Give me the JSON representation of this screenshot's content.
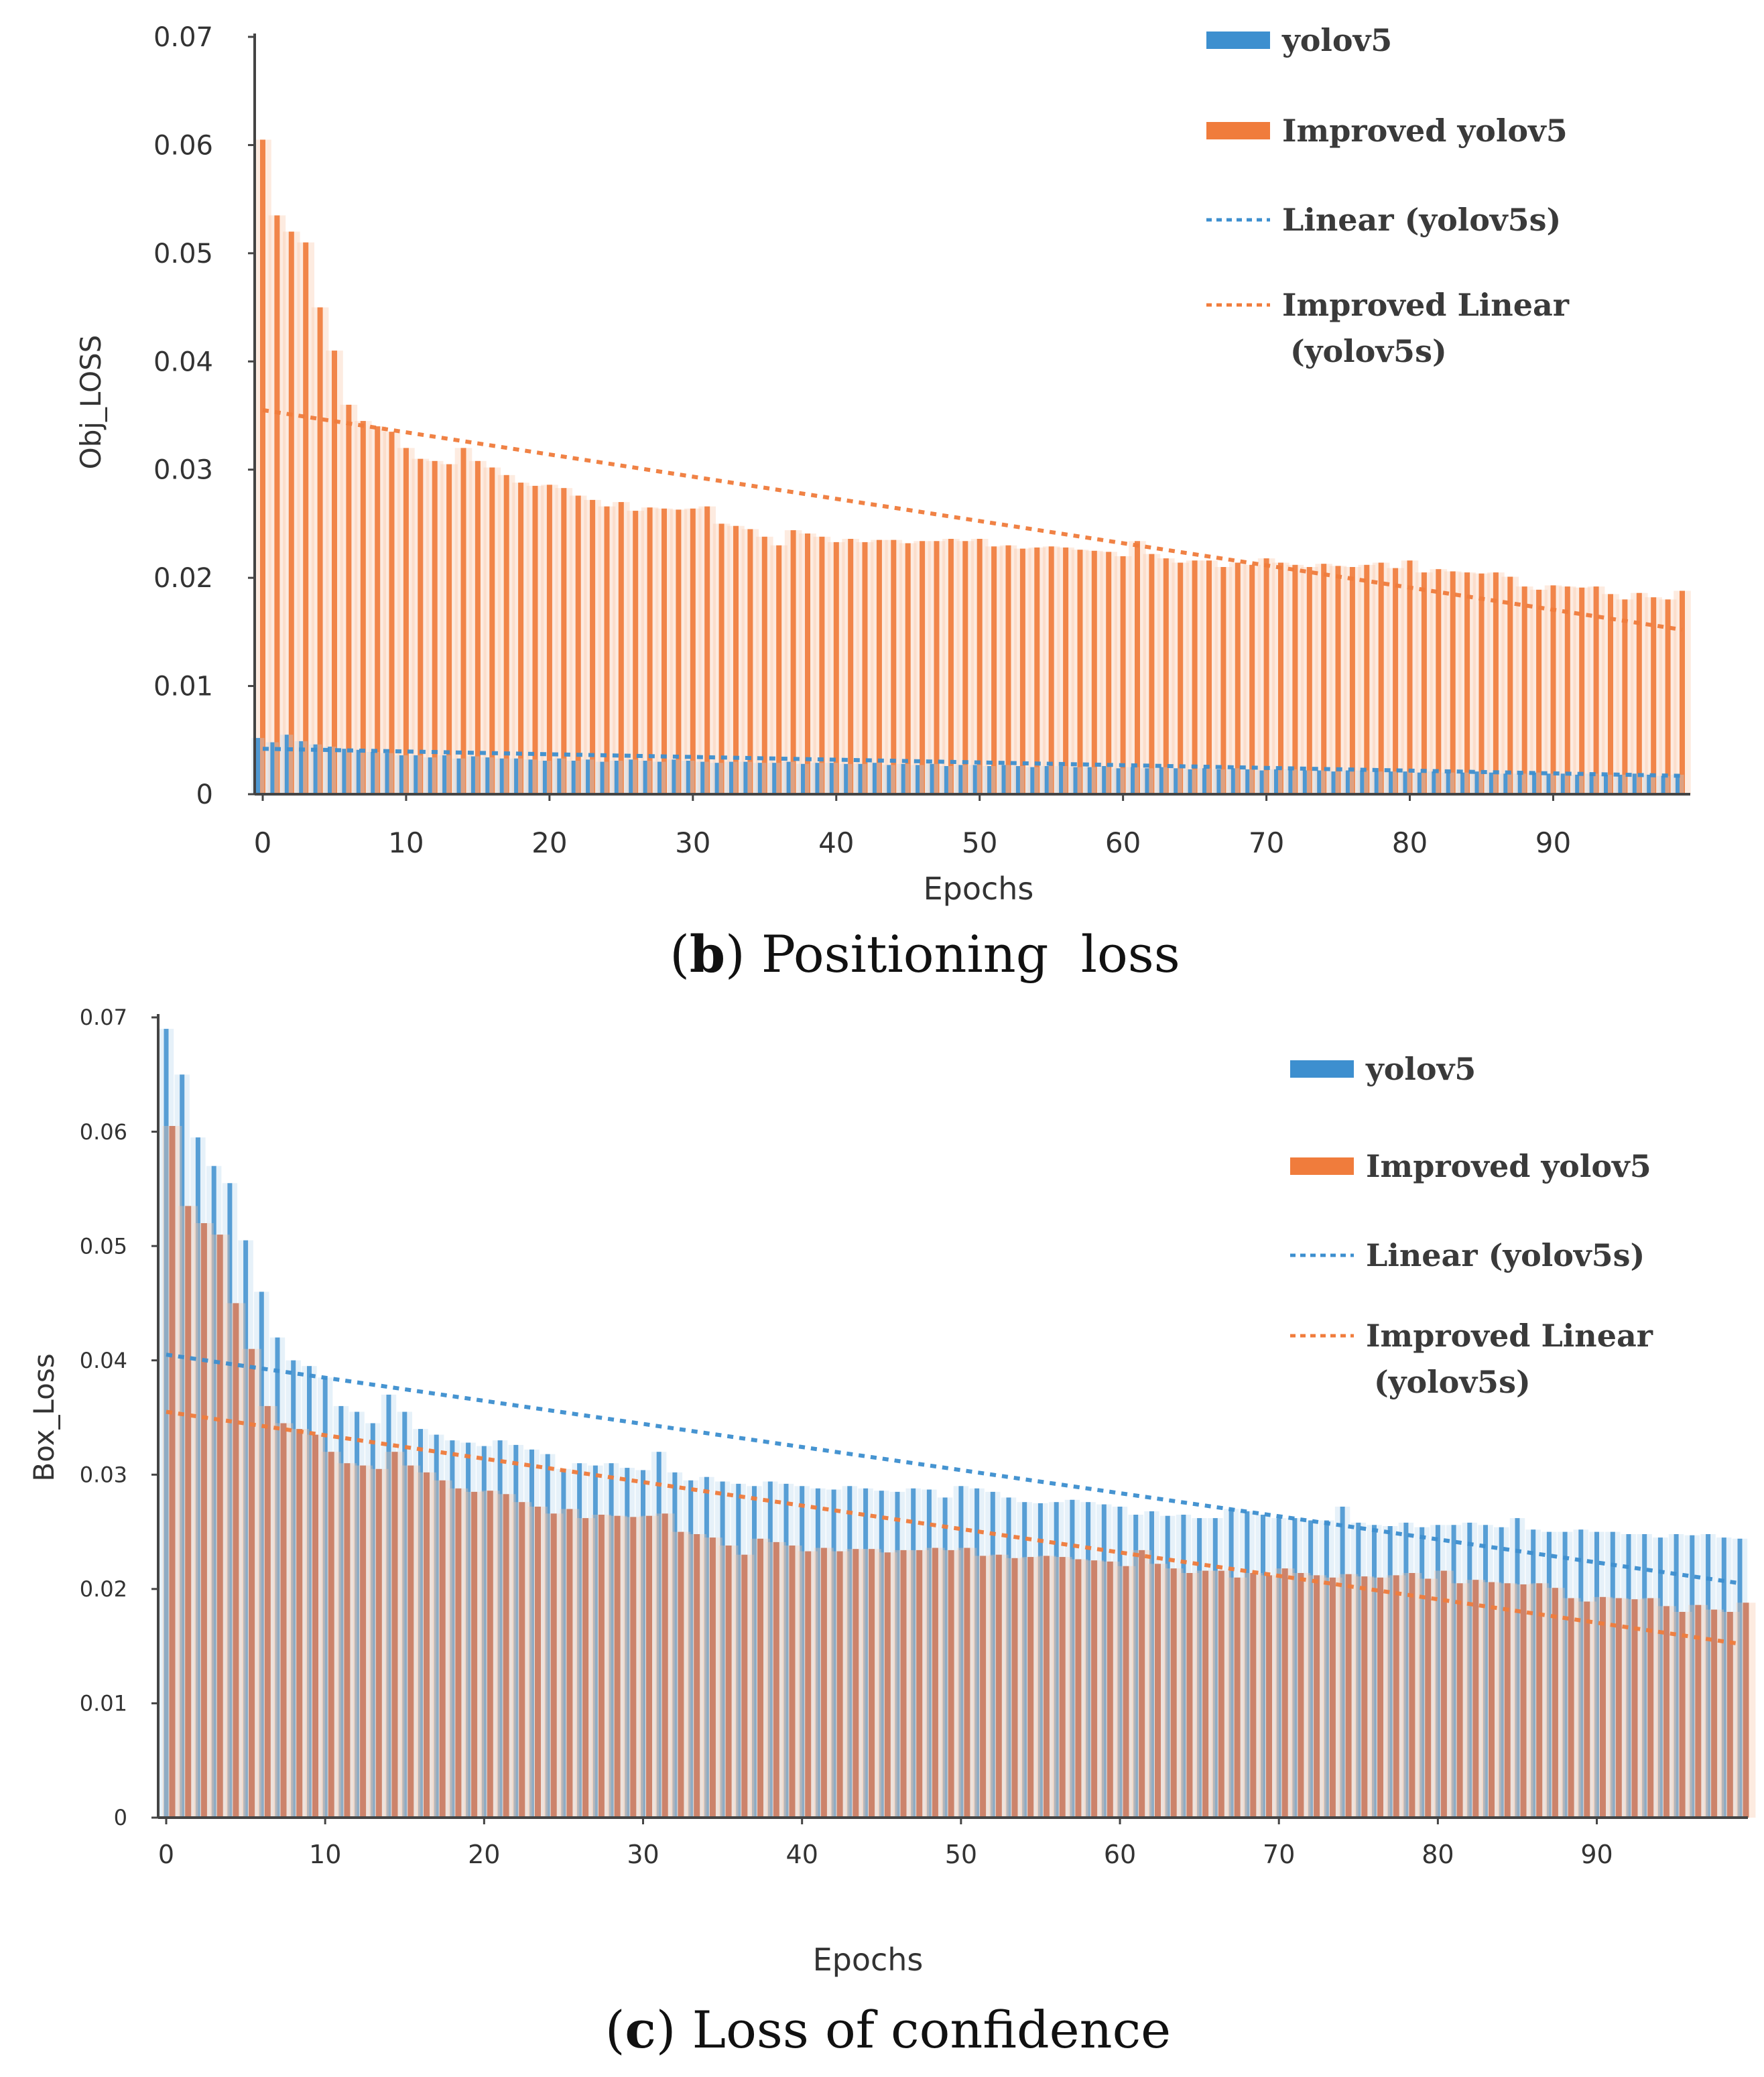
{
  "colors": {
    "yolov5": "#3d8fcf",
    "improved": "#f07c3c",
    "yolov5_light": "#b7d7ee",
    "improved_light": "#f8c6a6",
    "improved_dark": "#c8795e",
    "axis": "#444444",
    "text": "#333333"
  },
  "chart_data": [
    {
      "id": "b",
      "type": "bar",
      "caption_label": "b",
      "caption_text": "Positioning  loss",
      "xlabel": "Epochs",
      "ylabel": "Obj_LOSS",
      "ylim": [
        0,
        0.07
      ],
      "xlim": [
        0,
        99
      ],
      "x_ticks": [
        0,
        10,
        20,
        30,
        40,
        50,
        60,
        70,
        80,
        90
      ],
      "y_ticks": [
        "0",
        "0.01",
        "0.02",
        "0.03",
        "0.04",
        "0.05",
        "0.06",
        "0.07"
      ],
      "legend": [
        {
          "name": "yolov5",
          "style": "bar",
          "color": "#3d8fcf"
        },
        {
          "name": "Improved yolov5",
          "style": "bar",
          "color": "#f07c3c"
        },
        {
          "name": "Linear (yolov5s)",
          "style": "dashed",
          "color": "#3d8fcf"
        },
        {
          "name": "Improved Linear (yolov5s)",
          "lines": [
            "Improved Linear",
            "(yolov5s)"
          ],
          "style": "dashed",
          "color": "#f07c3c"
        }
      ],
      "series": [
        {
          "name": "Improved yolov5",
          "color": "#f07c3c",
          "values": [
            0.0605,
            0.0535,
            0.052,
            0.051,
            0.045,
            0.041,
            0.036,
            0.0345,
            0.034,
            0.0335,
            0.032,
            0.031,
            0.0308,
            0.0305,
            0.032,
            0.0308,
            0.0302,
            0.0295,
            0.0288,
            0.0285,
            0.0286,
            0.0283,
            0.0276,
            0.0272,
            0.0266,
            0.027,
            0.0262,
            0.0265,
            0.0264,
            0.0263,
            0.0264,
            0.0266,
            0.025,
            0.0248,
            0.0245,
            0.0238,
            0.023,
            0.0244,
            0.0241,
            0.0238,
            0.0233,
            0.0236,
            0.0233,
            0.0235,
            0.0235,
            0.0232,
            0.0234,
            0.0234,
            0.0236,
            0.0234,
            0.0236,
            0.0229,
            0.023,
            0.0227,
            0.0228,
            0.0229,
            0.0228,
            0.0226,
            0.0225,
            0.0224,
            0.022,
            0.0234,
            0.0222,
            0.0218,
            0.0214,
            0.0216,
            0.0216,
            0.021,
            0.0214,
            0.0212,
            0.0218,
            0.0214,
            0.0212,
            0.021,
            0.0213,
            0.0211,
            0.021,
            0.0212,
            0.0214,
            0.0209,
            0.0216,
            0.0205,
            0.0208,
            0.0206,
            0.0205,
            0.0204,
            0.0205,
            0.0201,
            0.0192,
            0.0189,
            0.0193,
            0.0192,
            0.0191,
            0.0192,
            0.0185,
            0.018,
            0.0186,
            0.0182,
            0.018,
            0.0188
          ]
        },
        {
          "name": "yolov5",
          "color": "#3d8fcf",
          "values": [
            0.0052,
            0.0048,
            0.0055,
            0.0049,
            0.0046,
            0.0044,
            0.0042,
            0.0041,
            0.0039,
            0.0038,
            0.0036,
            0.0036,
            0.0034,
            0.0036,
            0.0033,
            0.0035,
            0.0034,
            0.0033,
            0.0033,
            0.0032,
            0.0031,
            0.0033,
            0.0031,
            0.0032,
            0.003,
            0.0031,
            0.0032,
            0.0031,
            0.003,
            0.0032,
            0.0031,
            0.003,
            0.0029,
            0.003,
            0.003,
            0.0029,
            0.0029,
            0.003,
            0.0028,
            0.0029,
            0.0029,
            0.0028,
            0.0028,
            0.0029,
            0.0027,
            0.0028,
            0.0027,
            0.0028,
            0.0026,
            0.0027,
            0.0027,
            0.0026,
            0.0027,
            0.0026,
            0.0025,
            0.0026,
            0.0026,
            0.0025,
            0.0025,
            0.0026,
            0.0024,
            0.0025,
            0.0024,
            0.0025,
            0.0024,
            0.0023,
            0.0024,
            0.0023,
            0.0024,
            0.0023,
            0.0022,
            0.0023,
            0.0023,
            0.0022,
            0.0022,
            0.0021,
            0.0022,
            0.0022,
            0.0021,
            0.0021,
            0.0021,
            0.002,
            0.0021,
            0.002,
            0.002,
            0.0021,
            0.002,
            0.0019,
            0.0019,
            0.002,
            0.0019,
            0.0019,
            0.0018,
            0.0019,
            0.0018,
            0.0018,
            0.0019,
            0.0018,
            0.0017,
            0.0018
          ]
        }
      ],
      "trendlines": [
        {
          "name": "Improved Linear (yolov5s)",
          "color": "#f07c3c",
          "x": [
            0,
            99
          ],
          "y": [
            0.0355,
            0.0152
          ]
        },
        {
          "name": "Linear (yolov5s)",
          "color": "#3d8fcf",
          "x": [
            0,
            99
          ],
          "y": [
            0.0042,
            0.0017
          ]
        }
      ]
    },
    {
      "id": "c",
      "type": "bar",
      "caption_label": "c",
      "caption_text": "Loss of confidence",
      "xlabel": "Epochs",
      "ylabel": "Box_Loss",
      "ylim": [
        0,
        0.07
      ],
      "xlim": [
        0,
        99
      ],
      "x_ticks": [
        0,
        10,
        20,
        30,
        40,
        50,
        60,
        70,
        80,
        90
      ],
      "y_ticks": [
        "0",
        "0.01",
        "0.02",
        "0.03",
        "0.04",
        "0.05",
        "0.06",
        "0.07"
      ],
      "legend": [
        {
          "name": "yolov5",
          "style": "bar",
          "color": "#3d8fcf"
        },
        {
          "name": "Improved yolov5",
          "style": "bar",
          "color": "#f07c3c"
        },
        {
          "name": "Linear (yolov5s)",
          "style": "dashed",
          "color": "#3d8fcf"
        },
        {
          "name": "Improved Linear (yolov5s)",
          "lines": [
            "Improved Linear",
            "(yolov5s)"
          ],
          "style": "dashed",
          "color": "#f07c3c"
        }
      ],
      "series": [
        {
          "name": "yolov5",
          "color": "#3d8fcf",
          "values": [
            0.069,
            0.065,
            0.0595,
            0.057,
            0.0555,
            0.0505,
            0.046,
            0.042,
            0.04,
            0.0395,
            0.0385,
            0.036,
            0.0355,
            0.0345,
            0.037,
            0.0355,
            0.034,
            0.0335,
            0.033,
            0.0328,
            0.0325,
            0.033,
            0.0326,
            0.0322,
            0.0318,
            0.0305,
            0.031,
            0.0308,
            0.031,
            0.0306,
            0.0304,
            0.032,
            0.0302,
            0.0295,
            0.0298,
            0.0294,
            0.0292,
            0.029,
            0.0294,
            0.0292,
            0.029,
            0.0288,
            0.0287,
            0.029,
            0.0288,
            0.0286,
            0.0285,
            0.0288,
            0.0287,
            0.028,
            0.029,
            0.0288,
            0.0285,
            0.028,
            0.0276,
            0.0275,
            0.0276,
            0.0278,
            0.0276,
            0.0274,
            0.0272,
            0.0265,
            0.0268,
            0.0264,
            0.0265,
            0.0262,
            0.0262,
            0.027,
            0.0268,
            0.0265,
            0.0262,
            0.0262,
            0.026,
            0.026,
            0.0272,
            0.0258,
            0.0256,
            0.0255,
            0.0258,
            0.0254,
            0.0256,
            0.0256,
            0.0258,
            0.0256,
            0.0254,
            0.0262,
            0.0252,
            0.025,
            0.025,
            0.0252,
            0.025,
            0.025,
            0.0248,
            0.0248,
            0.0245,
            0.0248,
            0.0247,
            0.0248,
            0.0245,
            0.0244
          ]
        },
        {
          "name": "Improved yolov5",
          "color": "#f07c3c",
          "values": [
            0.0605,
            0.0535,
            0.052,
            0.051,
            0.045,
            0.041,
            0.036,
            0.0345,
            0.034,
            0.0335,
            0.032,
            0.031,
            0.0308,
            0.0305,
            0.032,
            0.0308,
            0.0302,
            0.0295,
            0.0288,
            0.0285,
            0.0286,
            0.0283,
            0.0276,
            0.0272,
            0.0266,
            0.027,
            0.0262,
            0.0265,
            0.0264,
            0.0263,
            0.0264,
            0.0266,
            0.025,
            0.0248,
            0.0245,
            0.0238,
            0.023,
            0.0244,
            0.0241,
            0.0238,
            0.0233,
            0.0236,
            0.0233,
            0.0235,
            0.0235,
            0.0232,
            0.0234,
            0.0234,
            0.0236,
            0.0234,
            0.0236,
            0.0229,
            0.023,
            0.0227,
            0.0228,
            0.0229,
            0.0228,
            0.0226,
            0.0225,
            0.0224,
            0.022,
            0.0234,
            0.0222,
            0.0218,
            0.0214,
            0.0216,
            0.0216,
            0.021,
            0.0214,
            0.0212,
            0.0218,
            0.0214,
            0.0212,
            0.021,
            0.0213,
            0.0211,
            0.021,
            0.0212,
            0.0214,
            0.0209,
            0.0216,
            0.0205,
            0.0208,
            0.0206,
            0.0205,
            0.0204,
            0.0205,
            0.0201,
            0.0192,
            0.0189,
            0.0193,
            0.0192,
            0.0191,
            0.0192,
            0.0185,
            0.018,
            0.0186,
            0.0182,
            0.018,
            0.0188
          ]
        }
      ],
      "trendlines": [
        {
          "name": "Linear (yolov5s)",
          "color": "#3d8fcf",
          "x": [
            0,
            99
          ],
          "y": [
            0.0405,
            0.0205
          ]
        },
        {
          "name": "Improved Linear (yolov5s)",
          "color": "#f07c3c",
          "x": [
            0,
            99
          ],
          "y": [
            0.0355,
            0.0152
          ]
        }
      ]
    }
  ]
}
